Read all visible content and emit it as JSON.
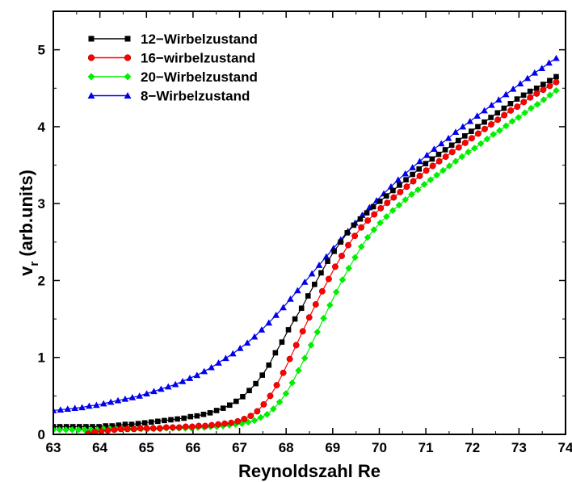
{
  "chart_data": {
    "type": "line",
    "title": "",
    "xlabel": "Reynoldszahl Re",
    "ylabel": {
      "main": "v",
      "sub": "r",
      "rest": " (arb.units)"
    },
    "xlim": [
      63,
      74
    ],
    "ylim": [
      0,
      5.5
    ],
    "x_ticks": [
      "63",
      "64",
      "65",
      "66",
      "67",
      "68",
      "69",
      "70",
      "71",
      "72",
      "73",
      "74"
    ],
    "y_ticks": [
      "0",
      "1",
      "2",
      "3",
      "4",
      "5"
    ],
    "legend_position": "top-left",
    "series": [
      {
        "name": "12−Wirbelzustand",
        "color": "#000000",
        "marker": "square",
        "x_start": 63.0,
        "x_end": 73.8,
        "values": [
          0.1,
          0.1,
          0.1,
          0.1,
          0.1,
          0.1,
          0.1,
          0.1,
          0.11,
          0.11,
          0.12,
          0.13,
          0.13,
          0.14,
          0.15,
          0.16,
          0.17,
          0.18,
          0.19,
          0.2,
          0.21,
          0.23,
          0.24,
          0.26,
          0.28,
          0.31,
          0.34,
          0.38,
          0.43,
          0.49,
          0.57,
          0.66,
          0.77,
          0.9,
          1.06,
          1.2,
          1.36,
          1.5,
          1.64,
          1.8,
          1.95,
          2.1,
          2.25,
          2.38,
          2.5,
          2.62,
          2.72,
          2.8,
          2.88,
          2.96,
          3.03,
          3.1,
          3.17,
          3.24,
          3.31,
          3.38,
          3.45,
          3.52,
          3.58,
          3.64,
          3.7,
          3.76,
          3.82,
          3.88,
          3.94,
          4.0,
          4.06,
          4.12,
          4.18,
          4.24,
          4.3,
          4.36,
          4.41,
          4.46,
          4.5,
          4.55,
          4.6,
          4.65
        ]
      },
      {
        "name": "16−wirbelzustand",
        "color": "#ff0000",
        "marker": "circle",
        "x_start": 63.75,
        "x_end": 73.8,
        "values": [
          0.01,
          0.03,
          0.04,
          0.05,
          0.06,
          0.07,
          0.07,
          0.07,
          0.08,
          0.08,
          0.08,
          0.08,
          0.09,
          0.09,
          0.09,
          0.1,
          0.1,
          0.11,
          0.11,
          0.12,
          0.13,
          0.14,
          0.15,
          0.17,
          0.2,
          0.24,
          0.3,
          0.39,
          0.5,
          0.64,
          0.8,
          0.98,
          1.16,
          1.34,
          1.52,
          1.69,
          1.86,
          2.02,
          2.18,
          2.32,
          2.46,
          2.58,
          2.69,
          2.78,
          2.86,
          2.94,
          3.01,
          3.08,
          3.15,
          3.22,
          3.29,
          3.36,
          3.43,
          3.49,
          3.55,
          3.61,
          3.67,
          3.73,
          3.79,
          3.85,
          3.91,
          3.97,
          4.03,
          4.09,
          4.15,
          4.21,
          4.26,
          4.32,
          4.38,
          4.43,
          4.48,
          4.53,
          4.58
        ]
      },
      {
        "name": "20−Wirbelzustand",
        "color": "#00ee00",
        "marker": "diamond",
        "x_start": 63.0,
        "x_end": 73.8,
        "values": [
          0.06,
          0.06,
          0.06,
          0.06,
          0.06,
          0.06,
          0.06,
          0.06,
          0.07,
          0.07,
          0.07,
          0.07,
          0.07,
          0.07,
          0.07,
          0.07,
          0.07,
          0.07,
          0.08,
          0.08,
          0.08,
          0.08,
          0.08,
          0.09,
          0.09,
          0.1,
          0.1,
          0.11,
          0.12,
          0.13,
          0.14,
          0.16,
          0.18,
          0.22,
          0.26,
          0.33,
          0.42,
          0.53,
          0.67,
          0.83,
          0.99,
          1.16,
          1.33,
          1.51,
          1.68,
          1.85,
          2.01,
          2.16,
          2.3,
          2.44,
          2.56,
          2.66,
          2.75,
          2.83,
          2.91,
          2.98,
          3.05,
          3.12,
          3.18,
          3.25,
          3.31,
          3.37,
          3.43,
          3.49,
          3.55,
          3.61,
          3.67,
          3.72,
          3.78,
          3.84,
          3.9,
          3.95,
          4.01,
          4.07,
          4.12,
          4.18,
          4.24,
          4.29,
          4.35,
          4.41,
          4.47
        ]
      },
      {
        "name": "8−Wirbelzustand",
        "color": "#0000ee",
        "marker": "triangle",
        "x_start": 63.0,
        "x_end": 73.8,
        "values": [
          0.31,
          0.32,
          0.33,
          0.34,
          0.35,
          0.37,
          0.38,
          0.4,
          0.42,
          0.44,
          0.46,
          0.48,
          0.5,
          0.53,
          0.56,
          0.59,
          0.62,
          0.65,
          0.69,
          0.73,
          0.77,
          0.82,
          0.87,
          0.93,
          0.99,
          1.05,
          1.12,
          1.19,
          1.27,
          1.36,
          1.45,
          1.55,
          1.65,
          1.76,
          1.87,
          1.98,
          2.09,
          2.2,
          2.31,
          2.42,
          2.53,
          2.64,
          2.75,
          2.85,
          2.95,
          3.04,
          3.13,
          3.22,
          3.31,
          3.39,
          3.47,
          3.55,
          3.63,
          3.71,
          3.78,
          3.85,
          3.93,
          4.0,
          4.07,
          4.14,
          4.21,
          4.28,
          4.35,
          4.42,
          4.49,
          4.56,
          4.63,
          4.7,
          4.76,
          4.83,
          4.89
        ]
      }
    ]
  }
}
